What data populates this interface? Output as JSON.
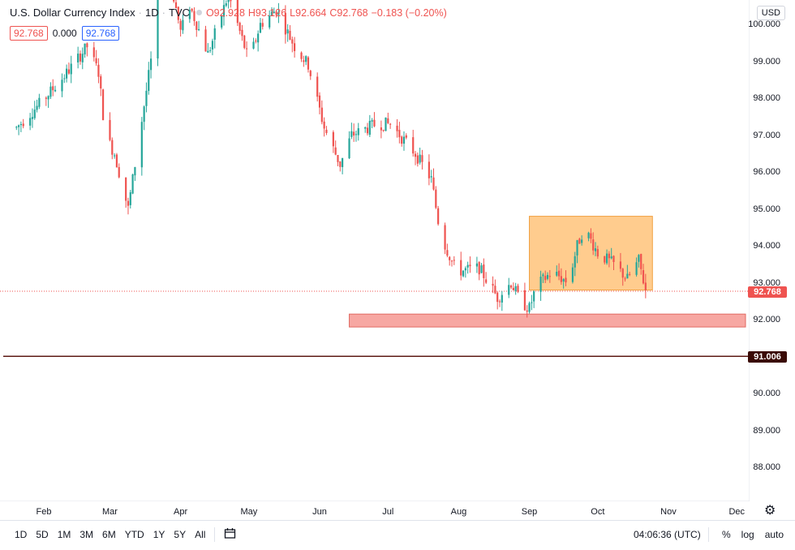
{
  "header": {
    "title": "U.S. Dollar Currency Index",
    "interval": "1D",
    "source": "TVC",
    "open": "O92.928",
    "high": "H93.126",
    "low": "L92.664",
    "close": "C92.768",
    "change": "−0.183 (−0.20%)",
    "bid": "92.768",
    "spread": "0.000",
    "ask": "92.768"
  },
  "currency_button": "USD",
  "colors": {
    "up": "#26a69a",
    "down": "#ef5350",
    "orange_box": "#ffc37a",
    "red_zone": "#f7a7a2",
    "support_line": "#5d1a14",
    "price_tag_current": "#ef5350",
    "price_tag_support": "#3a0b06"
  },
  "price_tags": {
    "current": "92.768",
    "support": "91.006"
  },
  "bottom": {
    "ranges": [
      "1D",
      "5D",
      "1M",
      "3M",
      "6M",
      "YTD",
      "1Y",
      "5Y",
      "All"
    ],
    "clock": "04:06:36 (UTC)",
    "percent": "%",
    "log": "log",
    "auto": "auto"
  },
  "chart_data": {
    "type": "candlestick",
    "title": "U.S. Dollar Currency Index",
    "ylim": [
      87.2,
      100.4
    ],
    "y_ticks": [
      "100.000",
      "99.000",
      "98.000",
      "97.000",
      "96.000",
      "95.000",
      "94.000",
      "93.000",
      "92.000",
      "91.000",
      "90.000",
      "89.000",
      "88.000"
    ],
    "x_ticks": [
      "Feb",
      "Mar",
      "Apr",
      "May",
      "Jun",
      "Jul",
      "Aug",
      "Sep",
      "Oct",
      "Nov",
      "Dec"
    ],
    "close_path": [
      [
        "Jan 20",
        97.2
      ],
      [
        "Jan 31",
        97.9
      ],
      [
        "Feb 10",
        98.6
      ],
      [
        "Feb 20",
        99.4
      ],
      [
        "Feb 25",
        98.7
      ],
      [
        "Feb 28",
        97.0
      ],
      [
        "Mar 3",
        96.5
      ],
      [
        "Mar 9",
        95.0
      ],
      [
        "Mar 13",
        96.6
      ],
      [
        "Mar 19",
        99.0
      ],
      [
        "Mar 20",
        100.6
      ],
      [
        "Mar 25",
        102.0
      ],
      [
        "Apr 1",
        99.8
      ],
      [
        "Apr 5",
        100.5
      ],
      [
        "Apr 13",
        99.2
      ],
      [
        "Apr 22",
        100.8
      ],
      [
        "May 1",
        99.0
      ],
      [
        "May 6",
        100.0
      ],
      [
        "May 13",
        100.4
      ],
      [
        "May 21",
        99.4
      ],
      [
        "May 27",
        98.9
      ],
      [
        "Jun 3",
        97.2
      ],
      [
        "Jun 10",
        96.2
      ],
      [
        "Jun 15",
        97.0
      ],
      [
        "Jun 26",
        97.3
      ],
      [
        "Jul 2",
        97.3
      ],
      [
        "Jul 13",
        96.5
      ],
      [
        "Jul 20",
        95.8
      ],
      [
        "Jul 24",
        94.3
      ],
      [
        "Jul 31",
        93.3
      ],
      [
        "Aug 10",
        93.4
      ],
      [
        "Aug 18",
        92.6
      ],
      [
        "Aug 24",
        93.0
      ],
      [
        "Aug 28",
        92.5
      ],
      [
        "Sep 1",
        92.3
      ],
      [
        "Sep 4",
        92.9
      ],
      [
        "Sep 11",
        93.3
      ],
      [
        "Sep 18",
        93.0
      ],
      [
        "Sep 22",
        94.0
      ],
      [
        "Sep 25",
        94.5
      ],
      [
        "Oct 1",
        93.8
      ],
      [
        "Oct 8",
        93.5
      ],
      [
        "Oct 14",
        93.1
      ],
      [
        "Oct 19",
        93.6
      ],
      [
        "Oct 22",
        92.8
      ]
    ],
    "orange_box": {
      "from": "Sep 1",
      "to": "Oct 25",
      "low": 92.8,
      "high": 94.8
    },
    "red_zone": {
      "from": "Jun 14",
      "to": "Dec 31",
      "low": 91.8,
      "high": 92.15
    },
    "support_line": 91.006,
    "last_price": 92.768
  }
}
